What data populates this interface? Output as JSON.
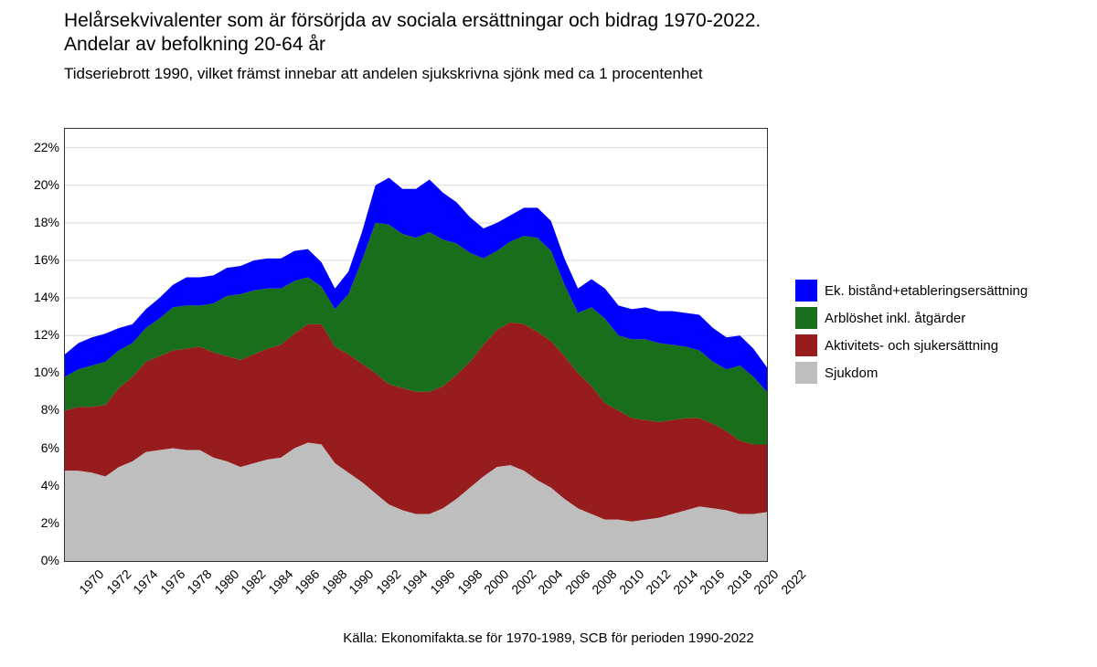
{
  "title": "Helårsekvivalenter som är försörjda av sociala ersättningar och bidrag 1970-2022. Andelar av befolkning 20-64 år",
  "subtitle": "Tidseriebrott 1990, vilket främst innebar att andelen sjukskrivna sjönk med ca 1 procentenhet",
  "source": "Källa: Ekonomifakta.se för 1970-1989, SCB för perioden 1990-2022",
  "chart": {
    "type": "stacked-area",
    "background_color": "#ffffff",
    "grid_color": "#d9d9d9",
    "border_color": "#333333",
    "ylim": [
      0,
      23
    ],
    "yticks": [
      0,
      2,
      4,
      6,
      8,
      10,
      12,
      14,
      16,
      18,
      20,
      22
    ],
    "ytick_labels": [
      "0%",
      "2%",
      "4%",
      "6%",
      "8%",
      "10%",
      "12%",
      "14%",
      "16%",
      "18%",
      "20%",
      "22%"
    ],
    "xtick_step": 2,
    "xtick_rotation": -45,
    "tick_fontsize": 14,
    "years": [
      1970,
      1971,
      1972,
      1973,
      1974,
      1975,
      1976,
      1977,
      1978,
      1979,
      1980,
      1981,
      1982,
      1983,
      1984,
      1985,
      1986,
      1987,
      1988,
      1989,
      1990,
      1991,
      1992,
      1993,
      1994,
      1995,
      1996,
      1997,
      1998,
      1999,
      2000,
      2001,
      2002,
      2003,
      2004,
      2005,
      2006,
      2007,
      2008,
      2009,
      2010,
      2011,
      2012,
      2013,
      2014,
      2015,
      2016,
      2017,
      2018,
      2019,
      2020,
      2021,
      2022
    ],
    "series": [
      {
        "key": "sjukdom",
        "label": "Sjukdom",
        "color": "#bebebe",
        "values": [
          4.8,
          4.8,
          4.7,
          4.5,
          5.0,
          5.3,
          5.8,
          5.9,
          6.0,
          5.9,
          5.9,
          5.5,
          5.3,
          5.0,
          5.2,
          5.4,
          5.5,
          6.0,
          6.3,
          6.2,
          5.2,
          4.7,
          4.2,
          3.6,
          3.0,
          2.7,
          2.5,
          2.5,
          2.8,
          3.3,
          3.9,
          4.5,
          5.0,
          5.1,
          4.8,
          4.3,
          3.9,
          3.3,
          2.8,
          2.5,
          2.2,
          2.2,
          2.1,
          2.2,
          2.3,
          2.5,
          2.7,
          2.9,
          2.8,
          2.7,
          2.5,
          2.5,
          2.6
        ]
      },
      {
        "key": "aktivitet",
        "label": "Aktivitets- och sjukersättning",
        "color": "#971c1d",
        "values": [
          3.2,
          3.4,
          3.5,
          3.8,
          4.2,
          4.5,
          4.8,
          5.0,
          5.2,
          5.4,
          5.5,
          5.6,
          5.6,
          5.7,
          5.8,
          5.9,
          6.0,
          6.1,
          6.3,
          6.4,
          6.2,
          6.3,
          6.3,
          6.4,
          6.4,
          6.5,
          6.5,
          6.5,
          6.5,
          6.6,
          6.7,
          7.0,
          7.3,
          7.6,
          7.8,
          7.9,
          7.8,
          7.6,
          7.2,
          6.8,
          6.2,
          5.8,
          5.5,
          5.3,
          5.1,
          5.0,
          4.9,
          4.7,
          4.5,
          4.2,
          3.9,
          3.7,
          3.6
        ]
      },
      {
        "key": "arbloshet",
        "label": "Arblöshet inkl. åtgärder",
        "color": "#196e1c",
        "values": [
          1.8,
          2.0,
          2.2,
          2.3,
          2.0,
          1.8,
          1.8,
          2.0,
          2.3,
          2.3,
          2.2,
          2.6,
          3.2,
          3.5,
          3.4,
          3.2,
          3.0,
          2.8,
          2.5,
          2.0,
          2.0,
          3.2,
          5.5,
          8.0,
          8.5,
          8.2,
          8.2,
          8.5,
          7.8,
          7.0,
          5.8,
          4.6,
          4.2,
          4.3,
          4.7,
          5.0,
          4.8,
          3.8,
          3.2,
          4.2,
          4.5,
          4.0,
          4.2,
          4.3,
          4.2,
          4.0,
          3.8,
          3.6,
          3.3,
          3.3,
          4.0,
          3.6,
          2.8
        ]
      },
      {
        "key": "bistand",
        "label": "Ek. bistånd+etableringsersättning",
        "color": "#0000ff",
        "values": [
          1.2,
          1.4,
          1.5,
          1.5,
          1.2,
          1.0,
          1.0,
          1.1,
          1.2,
          1.5,
          1.5,
          1.5,
          1.5,
          1.5,
          1.6,
          1.6,
          1.6,
          1.6,
          1.5,
          1.3,
          1.1,
          1.2,
          1.5,
          2.0,
          2.5,
          2.4,
          2.6,
          2.8,
          2.5,
          2.2,
          1.9,
          1.6,
          1.5,
          1.4,
          1.5,
          1.6,
          1.6,
          1.4,
          1.3,
          1.5,
          1.6,
          1.6,
          1.6,
          1.7,
          1.7,
          1.8,
          1.8,
          1.9,
          1.8,
          1.7,
          1.6,
          1.5,
          1.3
        ]
      }
    ],
    "legend_order": [
      "bistand",
      "arbloshet",
      "aktivitet",
      "sjukdom"
    ],
    "legend_fontsize": 15,
    "title_fontsize": 21,
    "subtitle_fontsize": 17,
    "source_fontsize": 15
  }
}
